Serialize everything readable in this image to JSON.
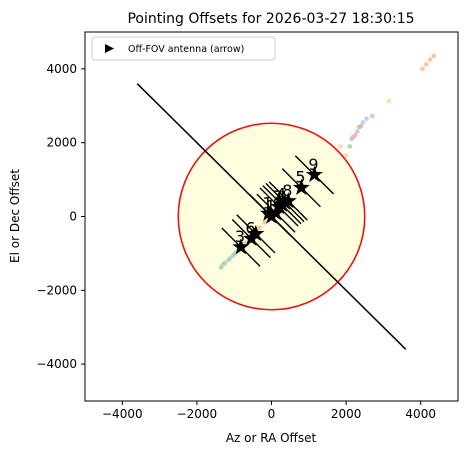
{
  "chart_data": {
    "type": "scatter",
    "title": "Pointing Offsets for 2026-03-27 18:30:15",
    "xlabel": "Az or RA Offset",
    "ylabel": "El or Dec Offset",
    "xlim": [
      -5000,
      5000
    ],
    "ylim": [
      -5000,
      5000
    ],
    "xticks": [
      -4000,
      -2000,
      0,
      2000,
      4000
    ],
    "yticks": [
      -4000,
      -2000,
      0,
      2000,
      4000
    ],
    "xtick_labels": [
      "−4000",
      "−2000",
      "0",
      "2000",
      "4000"
    ],
    "ytick_labels": [
      "−4000",
      "−2000",
      "0",
      "2000",
      "4000"
    ],
    "grid": false,
    "legend": {
      "placement": "top-left",
      "entries": [
        {
          "label": "Off-FOV antenna (arrow)",
          "marker": "triangle-right",
          "color": "#000000"
        }
      ]
    },
    "fov_circle": {
      "center": [
        0,
        0
      ],
      "radius": 2500,
      "edge_color": "#ee1111",
      "fill_color": "#ffffe0"
    },
    "track_line": {
      "x": [
        -3600,
        3600
      ],
      "y": [
        3600,
        -3600
      ],
      "color": "#000000"
    },
    "antennas": [
      {
        "label": "3",
        "x": -820,
        "y": -830
      },
      {
        "label": "6",
        "x": -540,
        "y": -600
      },
      {
        "label": "",
        "x": -420,
        "y": -470
      },
      {
        "label": "10",
        "x": -80,
        "y": 80
      },
      {
        "label": "1",
        "x": 0,
        "y": 0
      },
      {
        "label": "",
        "x": 120,
        "y": 90
      },
      {
        "label": "7",
        "x": 200,
        "y": 260
      },
      {
        "label": "4",
        "x": 280,
        "y": 320
      },
      {
        "label": "",
        "x": 360,
        "y": 380
      },
      {
        "label": "8",
        "x": 450,
        "y": 420
      },
      {
        "label": "5",
        "x": 800,
        "y": 780
      },
      {
        "label": "9",
        "x": 1150,
        "y": 1130
      }
    ],
    "samples": [
      {
        "color": "#9acd90",
        "points": [
          [
            -1350,
            -1380
          ],
          [
            -1250,
            -1260
          ],
          [
            -1150,
            -1180
          ],
          [
            -1020,
            -1050
          ],
          [
            -900,
            -920
          ],
          [
            2100,
            1900
          ],
          [
            2350,
            2420
          ]
        ]
      },
      {
        "color": "#9fc5e8",
        "points": [
          [
            -1300,
            -1300
          ],
          [
            -1100,
            -1120
          ],
          [
            -980,
            -1000
          ],
          [
            2450,
            2550
          ],
          [
            2550,
            2650
          ]
        ]
      },
      {
        "color": "#f4b183",
        "points": [
          [
            -700,
            -720
          ],
          [
            -600,
            -560
          ],
          [
            -450,
            -430
          ],
          [
            -320,
            -300
          ],
          [
            -180,
            -160
          ],
          [
            50,
            70
          ],
          [
            4050,
            4000
          ],
          [
            4150,
            4120
          ],
          [
            4250,
            4250
          ],
          [
            4350,
            4350
          ]
        ]
      },
      {
        "color": "#f0a0a8",
        "points": [
          [
            2250,
            2200
          ],
          [
            2400,
            2450
          ],
          [
            2700,
            2720
          ],
          [
            2180,
            2150
          ]
        ]
      },
      {
        "color": "#c8b0e0",
        "points": [
          [
            2150,
            2100
          ],
          [
            2300,
            2300
          ]
        ]
      },
      {
        "color": "#ffd27f",
        "points": [
          [
            1850,
            1900
          ],
          [
            2000,
            1650
          ],
          [
            3150,
            3130
          ]
        ]
      }
    ]
  }
}
